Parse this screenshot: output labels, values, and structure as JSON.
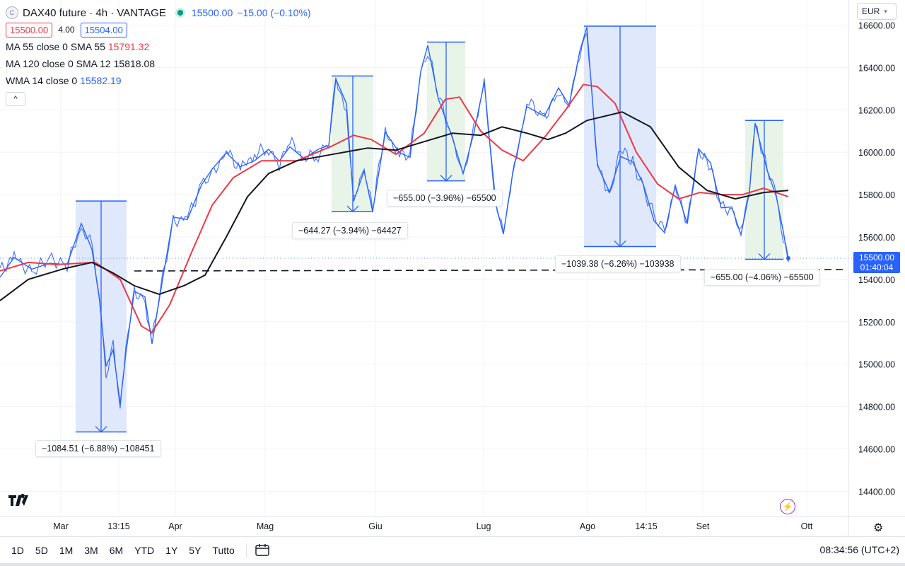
{
  "header": {
    "symbol_icon_letter": "C",
    "title": "DAX40 future · 4h · VANTAGE",
    "last_price": "15500.00",
    "change": "−15.00 (−0.10%)",
    "bid": "15500.00",
    "spread": "4.00",
    "ask": "15504.00",
    "currency": "EUR"
  },
  "indicators": [
    {
      "label": "MA 55 close 0 SMA 55",
      "value": "15791.32",
      "color": "#f23645"
    },
    {
      "label": "MA 120 close 0 SMA 12",
      "value": "15818.08",
      "color": "#131722"
    },
    {
      "label": "WMA 14 close 0",
      "value": "15582.19",
      "color": "#2962ff"
    }
  ],
  "collapse_glyph": "^",
  "price_axis": [
    "16600.00",
    "16400.00",
    "16200.00",
    "16000.00",
    "15800.00",
    "15600.00",
    "15400.00",
    "15200.00",
    "15000.00",
    "14800.00",
    "14600.00",
    "14400.00"
  ],
  "time_axis": [
    "Mar",
    "13:15",
    "Apr",
    "Mag",
    "Giu",
    "Lug",
    "Ago",
    "14:15",
    "Set",
    "Ott"
  ],
  "current_price_tag": {
    "price": "15500.00",
    "countdown": "01:40:04"
  },
  "measurements": [
    {
      "text": "−1084.51 (−6.88%) −108451",
      "kind": "down"
    },
    {
      "text": "−644.27 (−3.94%) −64427",
      "kind": "down"
    },
    {
      "text": "−655.00 (−3.96%) −65500",
      "kind": "down"
    },
    {
      "text": "−1039.38 (−6.26%) −103938",
      "kind": "down"
    },
    {
      "text": "−655.00 (−4.06%) −65500",
      "kind": "down"
    }
  ],
  "timeframes": [
    "1D",
    "5D",
    "1M",
    "3M",
    "6M",
    "YTD",
    "1Y",
    "5Y",
    "Tutto"
  ],
  "clock": "08:34:56 (UTC+2)",
  "colors": {
    "price_line": "#2962ff",
    "ma55": "#f23645",
    "ma120": "#131722",
    "blue_zone": "#dbe4fb",
    "green_zone": "#e4f2e4"
  },
  "icons": {
    "logo": "tradingview-logo-icon",
    "calendar": "calendar-range-icon",
    "settings": "gear-icon",
    "alert": "lightning-icon"
  }
}
